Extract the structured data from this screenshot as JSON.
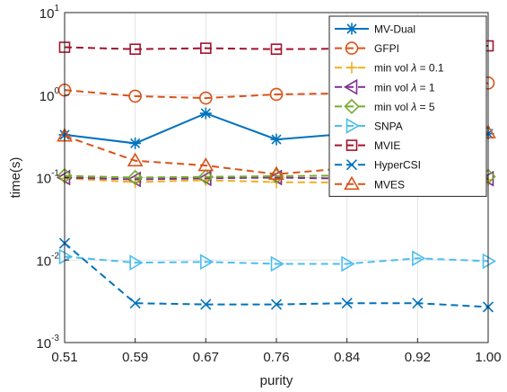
{
  "chart_data": {
    "type": "line",
    "xlabel": "purity",
    "ylabel": "time(s)",
    "y_scale": "log",
    "ylim": [
      0.001,
      10
    ],
    "x_tick_labels": [
      "0.51",
      "0.59",
      "0.67",
      "0.76",
      "0.84",
      "0.92",
      "1.00"
    ],
    "x": [
      0.51,
      0.59,
      0.67,
      0.76,
      0.84,
      0.92,
      1.0
    ],
    "y_ticks": [
      {
        "base": "10",
        "exp": "-3",
        "value": 0.001
      },
      {
        "base": "10",
        "exp": "-2",
        "value": 0.01
      },
      {
        "base": "10",
        "exp": "-1",
        "value": 0.1
      },
      {
        "base": "10",
        "exp": "0",
        "value": 1
      },
      {
        "base": "10",
        "exp": "1",
        "value": 10
      }
    ],
    "grid": true,
    "legend_position": "top-right",
    "series": [
      {
        "name": "MV-Dual",
        "label_main": "MV-Dual",
        "label_sym": "",
        "label_tail": "",
        "color": "#0072BD",
        "marker": "asterisk",
        "dash": "solid",
        "values": [
          0.33,
          0.26,
          0.6,
          0.29,
          0.34,
          0.34,
          0.34
        ]
      },
      {
        "name": "GFPI",
        "label_main": "GFPI",
        "label_sym": "",
        "label_tail": "",
        "color": "#D95319",
        "marker": "circle",
        "dash": "dashed",
        "values": [
          1.15,
          0.97,
          0.92,
          1.02,
          1.05,
          1.0,
          1.4
        ]
      },
      {
        "name": "min vol λ = 0.1",
        "label_main": "min vol ",
        "label_sym": "λ",
        "label_tail": " = 0.1",
        "color": "#EDB120",
        "marker": "plus",
        "dash": "dashed",
        "values": [
          0.098,
          0.088,
          0.093,
          0.088,
          0.087,
          0.088,
          0.094
        ]
      },
      {
        "name": "min vol λ = 1",
        "label_main": "min vol ",
        "label_sym": "λ",
        "label_tail": " = 1",
        "color": "#7E2F8E",
        "marker": "tri-left",
        "dash": "dashed",
        "values": [
          0.1,
          0.095,
          0.098,
          0.1,
          0.097,
          0.095,
          0.097
        ]
      },
      {
        "name": "min vol λ = 5",
        "label_main": "min vol ",
        "label_sym": "λ",
        "label_tail": " = 5",
        "color": "#77AC30",
        "marker": "diamond",
        "dash": "dashed",
        "values": [
          0.105,
          0.1,
          0.102,
          0.104,
          0.106,
          0.101,
          0.103
        ]
      },
      {
        "name": "SNPA",
        "label_main": "SNPA",
        "label_sym": "",
        "label_tail": "",
        "color": "#4DBEEE",
        "marker": "tri-right",
        "dash": "dashed",
        "values": [
          0.011,
          0.0093,
          0.0095,
          0.009,
          0.009,
          0.0105,
          0.0097
        ]
      },
      {
        "name": "MVIE",
        "label_main": "MVIE",
        "label_sym": "",
        "label_tail": "",
        "color": "#A2142F",
        "marker": "square",
        "dash": "dashed",
        "values": [
          3.8,
          3.6,
          3.7,
          3.6,
          3.65,
          3.7,
          3.95
        ]
      },
      {
        "name": "HyperCSI",
        "label_main": "HyperCSI",
        "label_sym": "",
        "label_tail": "",
        "color": "#0072BD",
        "marker": "x",
        "dash": "dashed",
        "values": [
          0.016,
          0.003,
          0.0029,
          0.0029,
          0.003,
          0.003,
          0.0027
        ]
      },
      {
        "name": "MVES",
        "label_main": "MVES",
        "label_sym": "",
        "label_tail": "",
        "color": "#D95319",
        "marker": "triangle",
        "dash": "dashed",
        "values": [
          0.32,
          0.16,
          0.14,
          0.11,
          0.13,
          0.2,
          0.35
        ]
      }
    ]
  }
}
